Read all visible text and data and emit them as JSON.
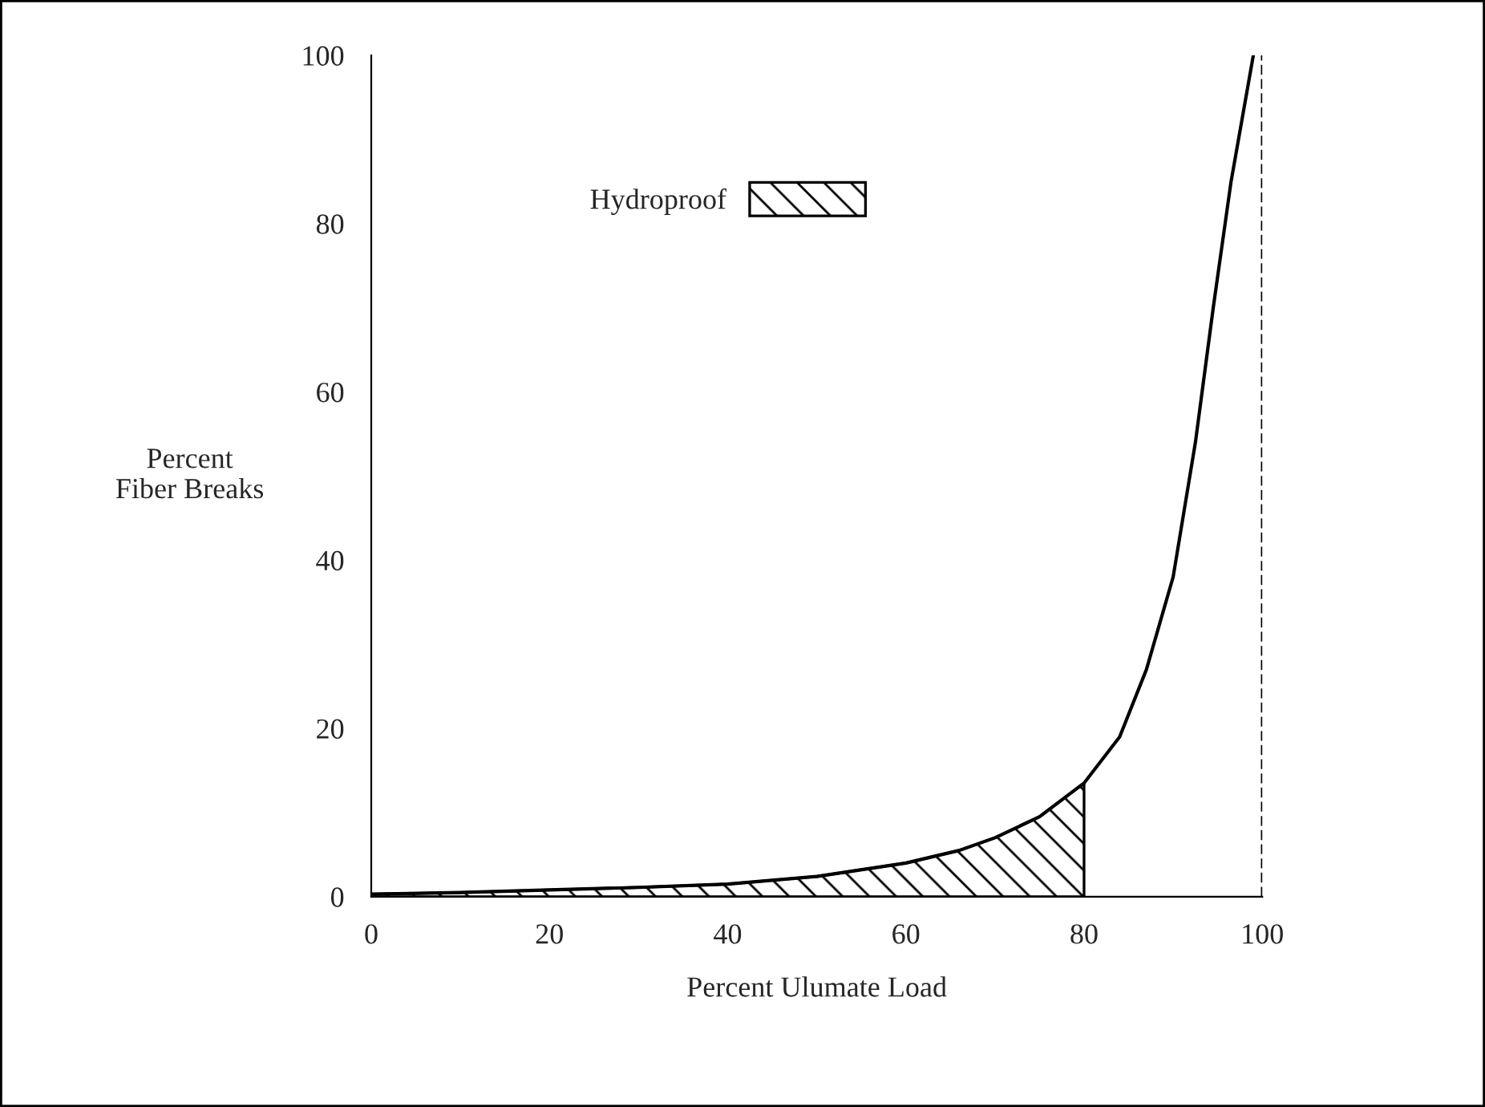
{
  "chart_data": {
    "type": "line",
    "xlabel": "Percent Ulumate Load",
    "ylabel": "Percent\nFiber Breaks",
    "xlim": [
      0,
      100
    ],
    "ylim": [
      0,
      100
    ],
    "xticks": [
      0,
      20,
      40,
      60,
      80,
      100
    ],
    "yticks": [
      0,
      20,
      40,
      60,
      80,
      100
    ],
    "series": [
      {
        "color": "#000000",
        "x": [
          0,
          10,
          20,
          30,
          40,
          50,
          60,
          66,
          70,
          75,
          80,
          84,
          87,
          90,
          92.5,
          94.5,
          96.5,
          98,
          99
        ],
        "values": [
          0.3,
          0.5,
          0.8,
          1.1,
          1.5,
          2.4,
          4,
          5.5,
          7,
          9.5,
          13.5,
          19,
          27,
          38,
          54,
          70,
          85,
          94,
          100
        ]
      },
      {
        "type": "area",
        "name": "Hydroproof",
        "color": "#000000",
        "x": [
          0,
          10,
          20,
          30,
          40,
          50,
          60,
          66,
          70,
          75,
          80
        ],
        "values": [
          0.3,
          0.5,
          0.8,
          1.1,
          1.5,
          2.4,
          4,
          5.5,
          7,
          9.5,
          13.5
        ]
      }
    ],
    "ref_lines": [
      {
        "axis": "x",
        "value": 100,
        "line_style": "dashed"
      }
    ],
    "legend": "top",
    "grid": false
  }
}
